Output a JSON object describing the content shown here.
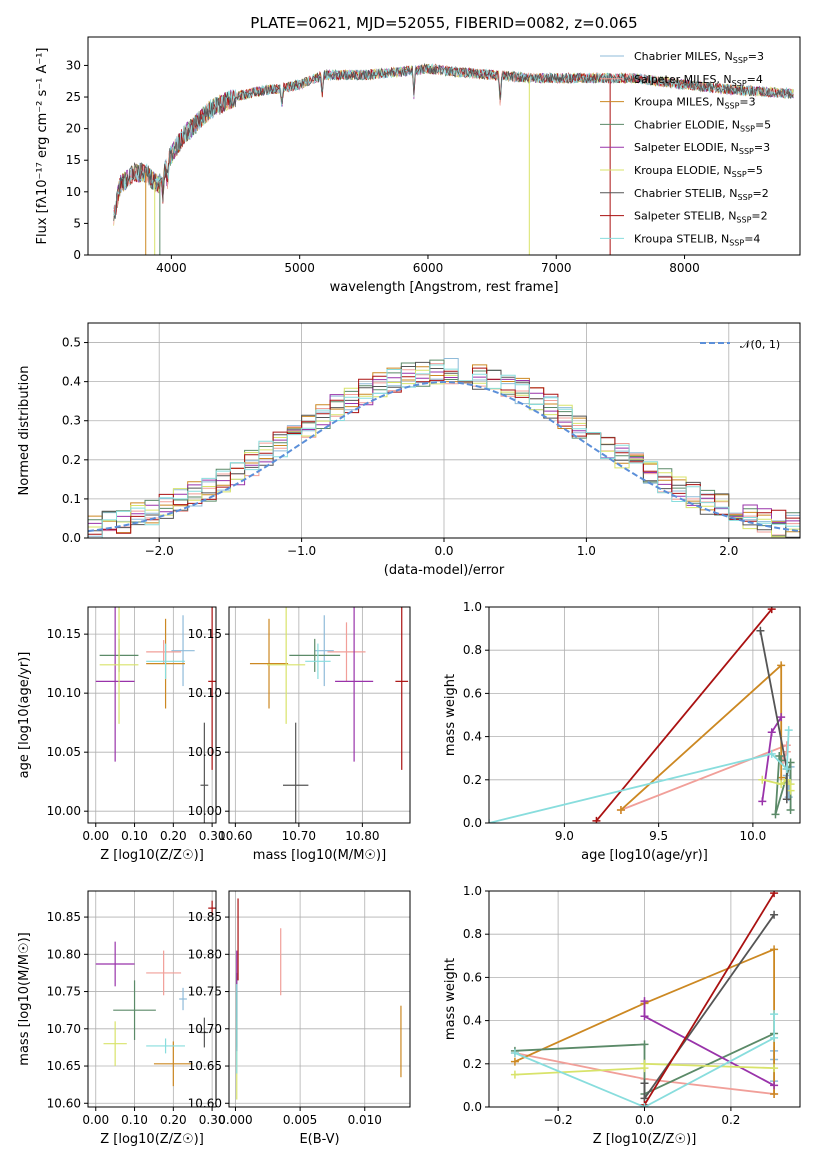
{
  "colors": [
    "#8fbbd9",
    "#f19f99",
    "#cc8822",
    "#5b8a68",
    "#9933aa",
    "#d8e36a",
    "#555555",
    "#aa1111",
    "#88dddd"
  ],
  "chart_data": [
    {
      "type": "line",
      "title": "PLATE=0621, MJD=52055, FIBERID=0082, z=0.065",
      "xlabel": "wavelength [Angstrom, rest frame]",
      "ylabel": "Flux [fλ10⁻¹⁷ erg cm⁻² s⁻¹ A⁻¹]",
      "xlim": [
        3350,
        8900
      ],
      "ylim": [
        0,
        34.5
      ],
      "xticks": [
        4000,
        5000,
        6000,
        7000,
        8000
      ],
      "yticks": [
        0,
        5,
        10,
        15,
        20,
        25,
        30
      ],
      "grid": false,
      "legend": "top-right",
      "legend_entries": [
        "Chabrier MILES, N_SSP=3",
        "Salpeter MILES, N_SSP=4",
        "Kroupa MILES, N_SSP=3",
        "Chabrier ELODIE, N_SSP=5",
        "Salpeter ELODIE, N_SSP=3",
        "Kroupa ELODIE, N_SSP=5",
        "Chabrier STELIB, N_SSP=2",
        "Salpeter STELIB, N_SSP=2",
        "Kroupa STELIB, N_SSP=4"
      ],
      "continuum": {
        "x": [
          3550,
          3600,
          3700,
          3800,
          3900,
          4000,
          4100,
          4200,
          4300,
          4400,
          4500,
          4700,
          4900,
          5000,
          5200,
          5500,
          5800,
          6000,
          6200,
          6500,
          6800,
          7000,
          7200,
          7400,
          7600,
          7800,
          8000,
          8200,
          8500,
          8850
        ],
        "y": [
          6,
          11,
          13,
          13,
          11,
          16,
          19,
          21,
          23,
          24,
          25,
          26,
          26.5,
          27,
          28.5,
          28.5,
          29,
          29.5,
          29,
          28.5,
          28,
          28,
          28,
          28,
          28,
          27.5,
          27,
          26.5,
          26,
          25.5
        ]
      },
      "dips": [
        [
          3934,
          3
        ],
        [
          3969,
          3
        ],
        [
          4861,
          3
        ],
        [
          5175,
          3.5
        ],
        [
          5890,
          4
        ],
        [
          6563,
          4.5
        ]
      ],
      "spikes": [
        [
          3800,
          0
        ],
        [
          3870,
          0
        ],
        [
          3910,
          0
        ],
        [
          6790,
          0
        ],
        [
          7420,
          0
        ]
      ]
    },
    {
      "type": "histogram",
      "xlabel": "(data-model)/error",
      "ylabel": "Normed distribution",
      "xlim": [
        -2.5,
        2.5
      ],
      "ylim": [
        0,
        0.55
      ],
      "xticks": [
        -2,
        -1,
        0,
        1,
        2
      ],
      "yticks": [
        0.0,
        0.1,
        0.2,
        0.3,
        0.4,
        0.5
      ],
      "grid": true,
      "legend": "top-right",
      "legend_entries": [
        "𝒩(0, 1)"
      ],
      "bin_width": 0.1
    },
    {
      "type": "scatter",
      "xlabel": "Z [log10(Z/Z☉)]",
      "ylabel": "age  [log10(age/yr)]",
      "xlim": [
        -0.02,
        0.31
      ],
      "ylim": [
        9.99,
        10.173
      ],
      "xticks": [
        0.0,
        0.1,
        0.2,
        0.3
      ],
      "yticks": [
        10.0,
        10.05,
        10.1,
        10.15
      ],
      "points": [
        {
          "x": 0.225,
          "y": 10.136,
          "xerr": 0.03,
          "yerr": 0.03,
          "c": 0
        },
        {
          "x": 0.175,
          "y": 10.135,
          "xerr": 0.045,
          "yerr": 0.01,
          "c": 1
        },
        {
          "x": 0.18,
          "y": 10.125,
          "xerr": 0.05,
          "yerr": 0.038,
          "c": 2
        },
        {
          "x": 0.06,
          "y": 10.132,
          "xerr": 0.05,
          "yerr": 0.014,
          "c": 3
        },
        {
          "x": 0.05,
          "y": 10.11,
          "xerr": 0.05,
          "yerr": 0.068,
          "c": 4
        },
        {
          "x": 0.06,
          "y": 10.124,
          "xerr": 0.05,
          "yerr": 0.05,
          "c": 5
        },
        {
          "x": 0.28,
          "y": 10.022,
          "xerr": 0.01,
          "yerr": 0.053,
          "c": 6
        },
        {
          "x": 0.3,
          "y": 10.11,
          "xerr": 0.01,
          "yerr": 0.075,
          "c": 7
        },
        {
          "x": 0.18,
          "y": 10.127,
          "xerr": 0.05,
          "yerr": 0.015,
          "c": 8
        }
      ]
    },
    {
      "type": "scatter",
      "xlabel": "mass [log10(M/M☉)]",
      "ylabel": "",
      "xlim": [
        10.59,
        10.875
      ],
      "ylim": [
        9.99,
        10.173
      ],
      "xticks": [
        10.6,
        10.7,
        10.8
      ],
      "yticks": [
        10.0,
        10.05,
        10.1,
        10.15
      ],
      "points": [
        {
          "x": 10.74,
          "y": 10.136,
          "xerr": 0.015,
          "yerr": 0.03,
          "c": 0
        },
        {
          "x": 10.775,
          "y": 10.135,
          "xerr": 0.03,
          "yerr": 0.025,
          "c": 1
        },
        {
          "x": 10.653,
          "y": 10.125,
          "xerr": 0.03,
          "yerr": 0.038,
          "c": 2
        },
        {
          "x": 10.725,
          "y": 10.132,
          "xerr": 0.04,
          "yerr": 0.014,
          "c": 3
        },
        {
          "x": 10.787,
          "y": 10.11,
          "xerr": 0.03,
          "yerr": 0.068,
          "c": 4
        },
        {
          "x": 10.68,
          "y": 10.124,
          "xerr": 0.03,
          "yerr": 0.05,
          "c": 5
        },
        {
          "x": 10.695,
          "y": 10.022,
          "xerr": 0.02,
          "yerr": 0.053,
          "c": 6
        },
        {
          "x": 10.862,
          "y": 10.11,
          "xerr": 0.01,
          "yerr": 0.075,
          "c": 7
        },
        {
          "x": 10.73,
          "y": 10.127,
          "xerr": 0.02,
          "yerr": 0.015,
          "c": 8
        }
      ]
    },
    {
      "type": "line",
      "xlabel": "age  [log10(age/yr)]",
      "ylabel": "mass weight",
      "xlim": [
        8.6,
        10.25
      ],
      "ylim": [
        0,
        1.0
      ],
      "xticks": [
        9.0,
        9.5,
        10.0
      ],
      "yticks": [
        0.0,
        0.2,
        0.4,
        0.6,
        0.8,
        1.0
      ],
      "grid": true,
      "series": [
        {
          "c": 0,
          "x": [
            10.18,
            10.19,
            10.2
          ],
          "y": [
            0.22,
            0.12,
            0.26
          ]
        },
        {
          "c": 1,
          "x": [
            9.3,
            10.18,
            10.18,
            10.16
          ],
          "y": [
            0.06,
            0.36,
            0.33,
            0.29
          ]
        },
        {
          "c": 2,
          "x": [
            9.3,
            10.15,
            10.15
          ],
          "y": [
            0.06,
            0.73,
            0.21
          ]
        },
        {
          "c": 3,
          "x": [
            10.2,
            10.2,
            10.12,
            10.14,
            10.15
          ],
          "y": [
            0.06,
            0.28,
            0.04,
            0.31,
            0.29
          ]
        },
        {
          "c": 4,
          "x": [
            10.05,
            10.1,
            10.15
          ],
          "y": [
            0.1,
            0.42,
            0.49
          ]
        },
        {
          "c": 5,
          "x": [
            10.05,
            10.15,
            10.18,
            10.2,
            10.2
          ],
          "y": [
            0.2,
            0.18,
            0.2,
            0.18,
            0.15
          ]
        },
        {
          "c": 6,
          "x": [
            10.04,
            10.18,
            10.18
          ],
          "y": [
            0.89,
            0.25,
            0.11
          ]
        },
        {
          "c": 7,
          "x": [
            9.17,
            10.1
          ],
          "y": [
            0.01,
            0.99
          ]
        },
        {
          "c": 8,
          "x": [
            8.6,
            10.1,
            10.18,
            10.19
          ],
          "y": [
            0.0,
            0.32,
            0.25,
            0.43
          ]
        }
      ]
    },
    {
      "type": "scatter",
      "xlabel": "Z [log10(Z/Z☉)]",
      "ylabel": "mass [log10(M/M☉)]",
      "xlim": [
        -0.02,
        0.31
      ],
      "ylim": [
        10.595,
        10.885
      ],
      "xticks": [
        0.0,
        0.1,
        0.2,
        0.3
      ],
      "yticks": [
        10.6,
        10.65,
        10.7,
        10.75,
        10.8,
        10.85
      ],
      "points": [
        {
          "x": 0.225,
          "y": 10.74,
          "xerr": 0.01,
          "yerr": 0.015,
          "c": 0
        },
        {
          "x": 0.175,
          "y": 10.775,
          "xerr": 0.045,
          "yerr": 0.03,
          "c": 1
        },
        {
          "x": 0.2,
          "y": 10.653,
          "xerr": 0.05,
          "yerr": 0.03,
          "c": 2
        },
        {
          "x": 0.1,
          "y": 10.725,
          "xerr": 0.055,
          "yerr": 0.04,
          "c": 3
        },
        {
          "x": 0.05,
          "y": 10.787,
          "xerr": 0.05,
          "yerr": 0.03,
          "c": 4
        },
        {
          "x": 0.05,
          "y": 10.68,
          "xerr": 0.03,
          "yerr": 0.03,
          "c": 5
        },
        {
          "x": 0.28,
          "y": 10.695,
          "xerr": 0.01,
          "yerr": 0.02,
          "c": 6
        },
        {
          "x": 0.3,
          "y": 10.862,
          "xerr": 0.01,
          "yerr": 0.01,
          "c": 7
        },
        {
          "x": 0.18,
          "y": 10.677,
          "xerr": 0.05,
          "yerr": 0.01,
          "c": 8
        }
      ]
    },
    {
      "type": "scatter",
      "xlabel": "E(B-V)",
      "ylabel": "",
      "xlim": [
        -0.0005,
        0.0135
      ],
      "ylim": [
        10.595,
        10.885
      ],
      "xticks": [
        0.0,
        0.005,
        0.01
      ],
      "yticks": [
        10.6,
        10.65,
        10.7,
        10.75,
        10.8,
        10.85
      ],
      "points": [
        {
          "x": 0.0001,
          "y": 10.74,
          "xerr": 0,
          "yerr": 0.03,
          "c": 0
        },
        {
          "x": 0.0035,
          "y": 10.79,
          "xerr": 0,
          "yerr": 0.045,
          "c": 1
        },
        {
          "x": 0.0128,
          "y": 10.683,
          "xerr": 0,
          "yerr": 0.048,
          "c": 2
        },
        {
          "x": 0.0001,
          "y": 10.725,
          "xerr": 0,
          "yerr": 0.05,
          "c": 3
        },
        {
          "x": 0.0001,
          "y": 10.76,
          "xerr": 0,
          "yerr": 0.045,
          "c": 4
        },
        {
          "x": 0.0001,
          "y": 10.64,
          "xerr": 0,
          "yerr": 0.035,
          "c": 5
        },
        {
          "x": 0.0001,
          "y": 10.71,
          "xerr": 0,
          "yerr": 0.04,
          "c": 6
        },
        {
          "x": 0.0002,
          "y": 10.82,
          "xerr": 0,
          "yerr": 0.055,
          "c": 7
        },
        {
          "x": 0.0001,
          "y": 10.7,
          "xerr": 0,
          "yerr": 0.06,
          "c": 8
        }
      ]
    },
    {
      "type": "line",
      "xlabel": "Z [log10(Z/Z☉)]",
      "ylabel": "mass weight",
      "xlim": [
        -0.36,
        0.36
      ],
      "ylim": [
        0,
        1.0
      ],
      "xticks": [
        -0.2,
        0.0,
        0.2
      ],
      "yticks": [
        0.0,
        0.2,
        0.4,
        0.6,
        0.8,
        1.0
      ],
      "grid": true,
      "series": [
        {
          "c": 0,
          "x": [
            0.3,
            0.3,
            0.3
          ],
          "y": [
            0.26,
            0.12,
            0.22
          ]
        },
        {
          "c": 1,
          "x": [
            -0.3,
            0.0,
            0.3
          ],
          "y": [
            0.25,
            0.13,
            0.06
          ]
        },
        {
          "c": 2,
          "x": [
            -0.3,
            0.0,
            0.3,
            0.3
          ],
          "y": [
            0.21,
            0.48,
            0.73,
            0.06
          ]
        },
        {
          "c": 3,
          "x": [
            -0.3,
            0.0,
            0.0,
            0.3
          ],
          "y": [
            0.26,
            0.29,
            0.06,
            0.34
          ]
        },
        {
          "c": 4,
          "x": [
            0.0,
            0.0,
            0.3
          ],
          "y": [
            0.49,
            0.42,
            0.1
          ]
        },
        {
          "c": 5,
          "x": [
            -0.3,
            0.0,
            0.0,
            0.3
          ],
          "y": [
            0.15,
            0.18,
            0.2,
            0.18
          ]
        },
        {
          "c": 6,
          "x": [
            0.0,
            0.0,
            0.3
          ],
          "y": [
            0.11,
            0.04,
            0.89
          ]
        },
        {
          "c": 7,
          "x": [
            0.0,
            0.3
          ],
          "y": [
            0.01,
            0.99
          ]
        },
        {
          "c": 8,
          "x": [
            -0.3,
            0.0,
            0.3,
            0.3
          ],
          "y": [
            0.25,
            0.0,
            0.32,
            0.43
          ]
        }
      ]
    }
  ]
}
